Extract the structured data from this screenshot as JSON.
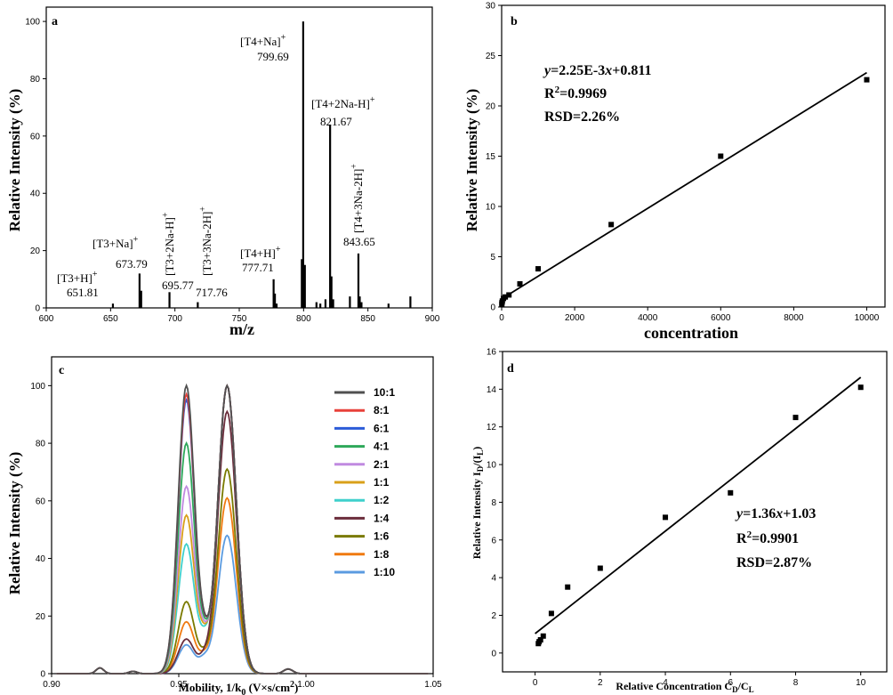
{
  "chart_data": [
    {
      "panel": "a",
      "type": "bar",
      "xlabel": "m/z",
      "ylabel": "Relative Intensity (%)",
      "xlim": [
        600,
        900
      ],
      "ylim": [
        0,
        105
      ],
      "xticks": [
        600,
        650,
        700,
        750,
        800,
        850,
        900
      ],
      "yticks": [
        0,
        20,
        40,
        60,
        80,
        100
      ],
      "peaks": [
        {
          "x": 651.81,
          "y": 1.5
        },
        {
          "x": 672.5,
          "y": 12
        },
        {
          "x": 673.79,
          "y": 6
        },
        {
          "x": 695.77,
          "y": 5.5
        },
        {
          "x": 717.76,
          "y": 2
        },
        {
          "x": 776.7,
          "y": 10
        },
        {
          "x": 777.71,
          "y": 5
        },
        {
          "x": 779,
          "y": 1.5
        },
        {
          "x": 798.6,
          "y": 17
        },
        {
          "x": 799.69,
          "y": 100
        },
        {
          "x": 801,
          "y": 15
        },
        {
          "x": 810,
          "y": 2
        },
        {
          "x": 813,
          "y": 1.5
        },
        {
          "x": 817,
          "y": 3
        },
        {
          "x": 820.6,
          "y": 64
        },
        {
          "x": 821.67,
          "y": 11
        },
        {
          "x": 823,
          "y": 3
        },
        {
          "x": 836,
          "y": 4
        },
        {
          "x": 842.6,
          "y": 19
        },
        {
          "x": 843.65,
          "y": 4
        },
        {
          "x": 845,
          "y": 2
        },
        {
          "x": 866,
          "y": 1.5
        },
        {
          "x": 883,
          "y": 4
        }
      ],
      "annotations": [
        {
          "ion": "[T3+H]",
          "sup": "+",
          "value": "651.81",
          "rotated": false
        },
        {
          "ion": "[T3+Na]",
          "sup": "+",
          "value": "673.79",
          "rotated": false
        },
        {
          "ion": "[T3+2Na-H]",
          "sup": "+",
          "value": "695.77",
          "rotated": true
        },
        {
          "ion": "[T3+3Na-2H]",
          "sup": "+",
          "value": "717.76",
          "rotated": true
        },
        {
          "ion": "[T4+H]",
          "sup": "+",
          "value": "777.71",
          "rotated": false
        },
        {
          "ion": "[T4+Na]",
          "sup": "+",
          "value": "799.69",
          "rotated": false
        },
        {
          "ion": "[T4+2Na-H]",
          "sup": "+",
          "value": "821.67",
          "rotated": false
        },
        {
          "ion": "[T4+3Na-2H]",
          "sup": "+",
          "value": "843.65",
          "rotated": true
        }
      ]
    },
    {
      "panel": "b",
      "type": "scatter",
      "xlabel": "concentration",
      "ylabel": "Relative Intensity (%)",
      "xlim": [
        0,
        10500
      ],
      "ylim": [
        0,
        30
      ],
      "xticks": [
        0,
        2000,
        4000,
        6000,
        8000,
        10000
      ],
      "yticks": [
        0,
        5,
        10,
        15,
        20,
        25,
        30
      ],
      "points": [
        {
          "x": 5,
          "y": 0.3
        },
        {
          "x": 10,
          "y": 0.45
        },
        {
          "x": 20,
          "y": 0.6
        },
        {
          "x": 50,
          "y": 0.85
        },
        {
          "x": 100,
          "y": 1.0
        },
        {
          "x": 200,
          "y": 1.2
        },
        {
          "x": 500,
          "y": 2.3
        },
        {
          "x": 1000,
          "y": 3.8
        },
        {
          "x": 3000,
          "y": 8.2
        },
        {
          "x": 6000,
          "y": 15.0
        },
        {
          "x": 10000,
          "y": 22.6
        }
      ],
      "fit": {
        "slope": 0.00225,
        "intercept": 0.811,
        "x_range": [
          0,
          10000
        ]
      },
      "equation": {
        "y_var": "y",
        "formula": "=2.25E-3",
        "x_var": "x",
        "intercept_part": "+0.811",
        "r2_label": "R",
        "r2_sup": "2",
        "r2_value": "=0.9969",
        "rsd": "RSD=2.26%"
      }
    },
    {
      "panel": "c",
      "type": "line",
      "xlabel": "Mobility, 1/k0 (V×s/cm2)",
      "ylabel": "Relative Intensity (%)",
      "xlim": [
        0.9,
        1.05
      ],
      "ylim": [
        0,
        110
      ],
      "xticks": [
        0.9,
        0.95,
        1.0,
        1.05
      ],
      "yticks": [
        0,
        20,
        40,
        60,
        80,
        100
      ],
      "legend_position": "top-right",
      "series": [
        {
          "name": "10:1",
          "color": "#505050",
          "a": 100,
          "b": 100
        },
        {
          "name": "8:1",
          "color": "#e8413a",
          "a": 100,
          "b": 97
        },
        {
          "name": "6:1",
          "color": "#2b5bd8",
          "a": 100,
          "b": 95
        },
        {
          "name": "4:1",
          "color": "#2ea85a",
          "a": 100,
          "b": 80
        },
        {
          "name": "2:1",
          "color": "#c08ae0",
          "a": 100,
          "b": 65
        },
        {
          "name": "1:1",
          "color": "#d9a01a",
          "a": 100,
          "b": 55
        },
        {
          "name": "1:2",
          "color": "#3fd0cc",
          "a": 100,
          "b": 45
        },
        {
          "name": "1:4",
          "color": "#6b2d3c",
          "a": 91,
          "b": 12
        },
        {
          "name": "1:6",
          "color": "#7a7a00",
          "a": 71,
          "b": 25
        },
        {
          "name": "1:8",
          "color": "#f07a10",
          "a": 61,
          "b": 18
        },
        {
          "name": "1:10",
          "color": "#5b9be0",
          "a": 48,
          "b": 10
        }
      ]
    },
    {
      "panel": "d",
      "type": "scatter",
      "xlabel": "Relative Concentration C",
      "xlabel_sub1": "D",
      "xlabel_sep": "/C",
      "xlabel_sub2": "L",
      "ylabel": "Relative Intensity I",
      "ylabel_sub1": "D",
      "ylabel_sep": "/(I",
      "ylabel_sub2": "L",
      "ylabel_end": ")",
      "xlim": [
        -1,
        10.8
      ],
      "ylim": [
        -1,
        16
      ],
      "xticks": [
        0,
        2,
        4,
        6,
        8,
        10
      ],
      "yticks": [
        0,
        2,
        4,
        6,
        8,
        10,
        12,
        14,
        16
      ],
      "points": [
        {
          "x": 0.1,
          "y": 0.5
        },
        {
          "x": 0.125,
          "y": 0.6
        },
        {
          "x": 0.167,
          "y": 0.7
        },
        {
          "x": 0.25,
          "y": 0.9
        },
        {
          "x": 0.5,
          "y": 2.1
        },
        {
          "x": 1,
          "y": 3.5
        },
        {
          "x": 2,
          "y": 4.5
        },
        {
          "x": 4,
          "y": 7.2
        },
        {
          "x": 6,
          "y": 8.5
        },
        {
          "x": 8,
          "y": 12.5
        },
        {
          "x": 10,
          "y": 14.1
        }
      ],
      "fit": {
        "slope": 1.36,
        "intercept": 1.03,
        "x_range": [
          0,
          10
        ]
      },
      "equation": {
        "y_var": "y",
        "formula": "=1.36",
        "x_var": "x",
        "intercept_part": "+1.03",
        "r2_label": "R",
        "r2_sup": "2",
        "r2_value": "=0.9901",
        "rsd": "RSD=2.87%"
      }
    }
  ],
  "panels": {
    "a": {
      "letter": "a",
      "xlabel": "m/z",
      "ylabel": "Relative Intensity (%)"
    },
    "b": {
      "letter": "b",
      "xlabel": "concentration",
      "ylabel": "Relative Intensity (%)"
    },
    "c": {
      "letter": "c",
      "xlabel_main": "Mobility, 1/k",
      "xlabel_sub": "0",
      "xlabel_rest": " (V×s/cm",
      "xlabel_sup": "2",
      "xlabel_end": ")",
      "ylabel": "Relative Intensity (%)"
    },
    "d": {
      "letter": "d"
    }
  }
}
